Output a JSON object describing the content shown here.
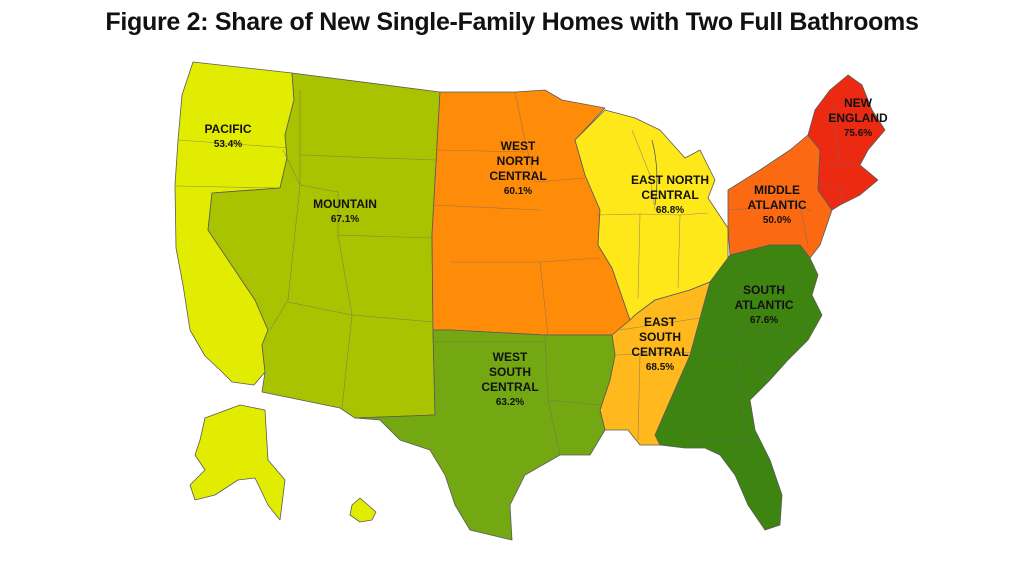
{
  "title": "Figure 2: Share of New Single-Family Homes with Two Full Bathrooms",
  "regions": [
    {
      "name_lines": [
        "PACIFIC"
      ],
      "value": "53.4%",
      "color": "#e2ec00"
    },
    {
      "name_lines": [
        "MOUNTAIN"
      ],
      "value": "67.1%",
      "color": "#a9c300"
    },
    {
      "name_lines": [
        "WEST",
        "NORTH",
        "CENTRAL"
      ],
      "value": "60.1%",
      "color": "#ff8c08"
    },
    {
      "name_lines": [
        "EAST NORTH",
        "CENTRAL"
      ],
      "value": "68.8%",
      "color": "#ffe81a"
    },
    {
      "name_lines": [
        "MIDDLE",
        "ATLANTIC"
      ],
      "value": "50.0%",
      "color": "#fb6a12"
    },
    {
      "name_lines": [
        "NEW",
        "ENGLAND"
      ],
      "value": "75.6%",
      "color": "#ec2a12"
    },
    {
      "name_lines": [
        "SOUTH",
        "ATLANTIC"
      ],
      "value": "67.6%",
      "color": "#3e8410"
    },
    {
      "name_lines": [
        "EAST",
        "SOUTH",
        "CENTRAL"
      ],
      "value": "68.5%",
      "color": "#ffb91c"
    },
    {
      "name_lines": [
        "WEST",
        "SOUTH",
        "CENTRAL"
      ],
      "value": "63.2%",
      "color": "#74a812"
    }
  ]
}
